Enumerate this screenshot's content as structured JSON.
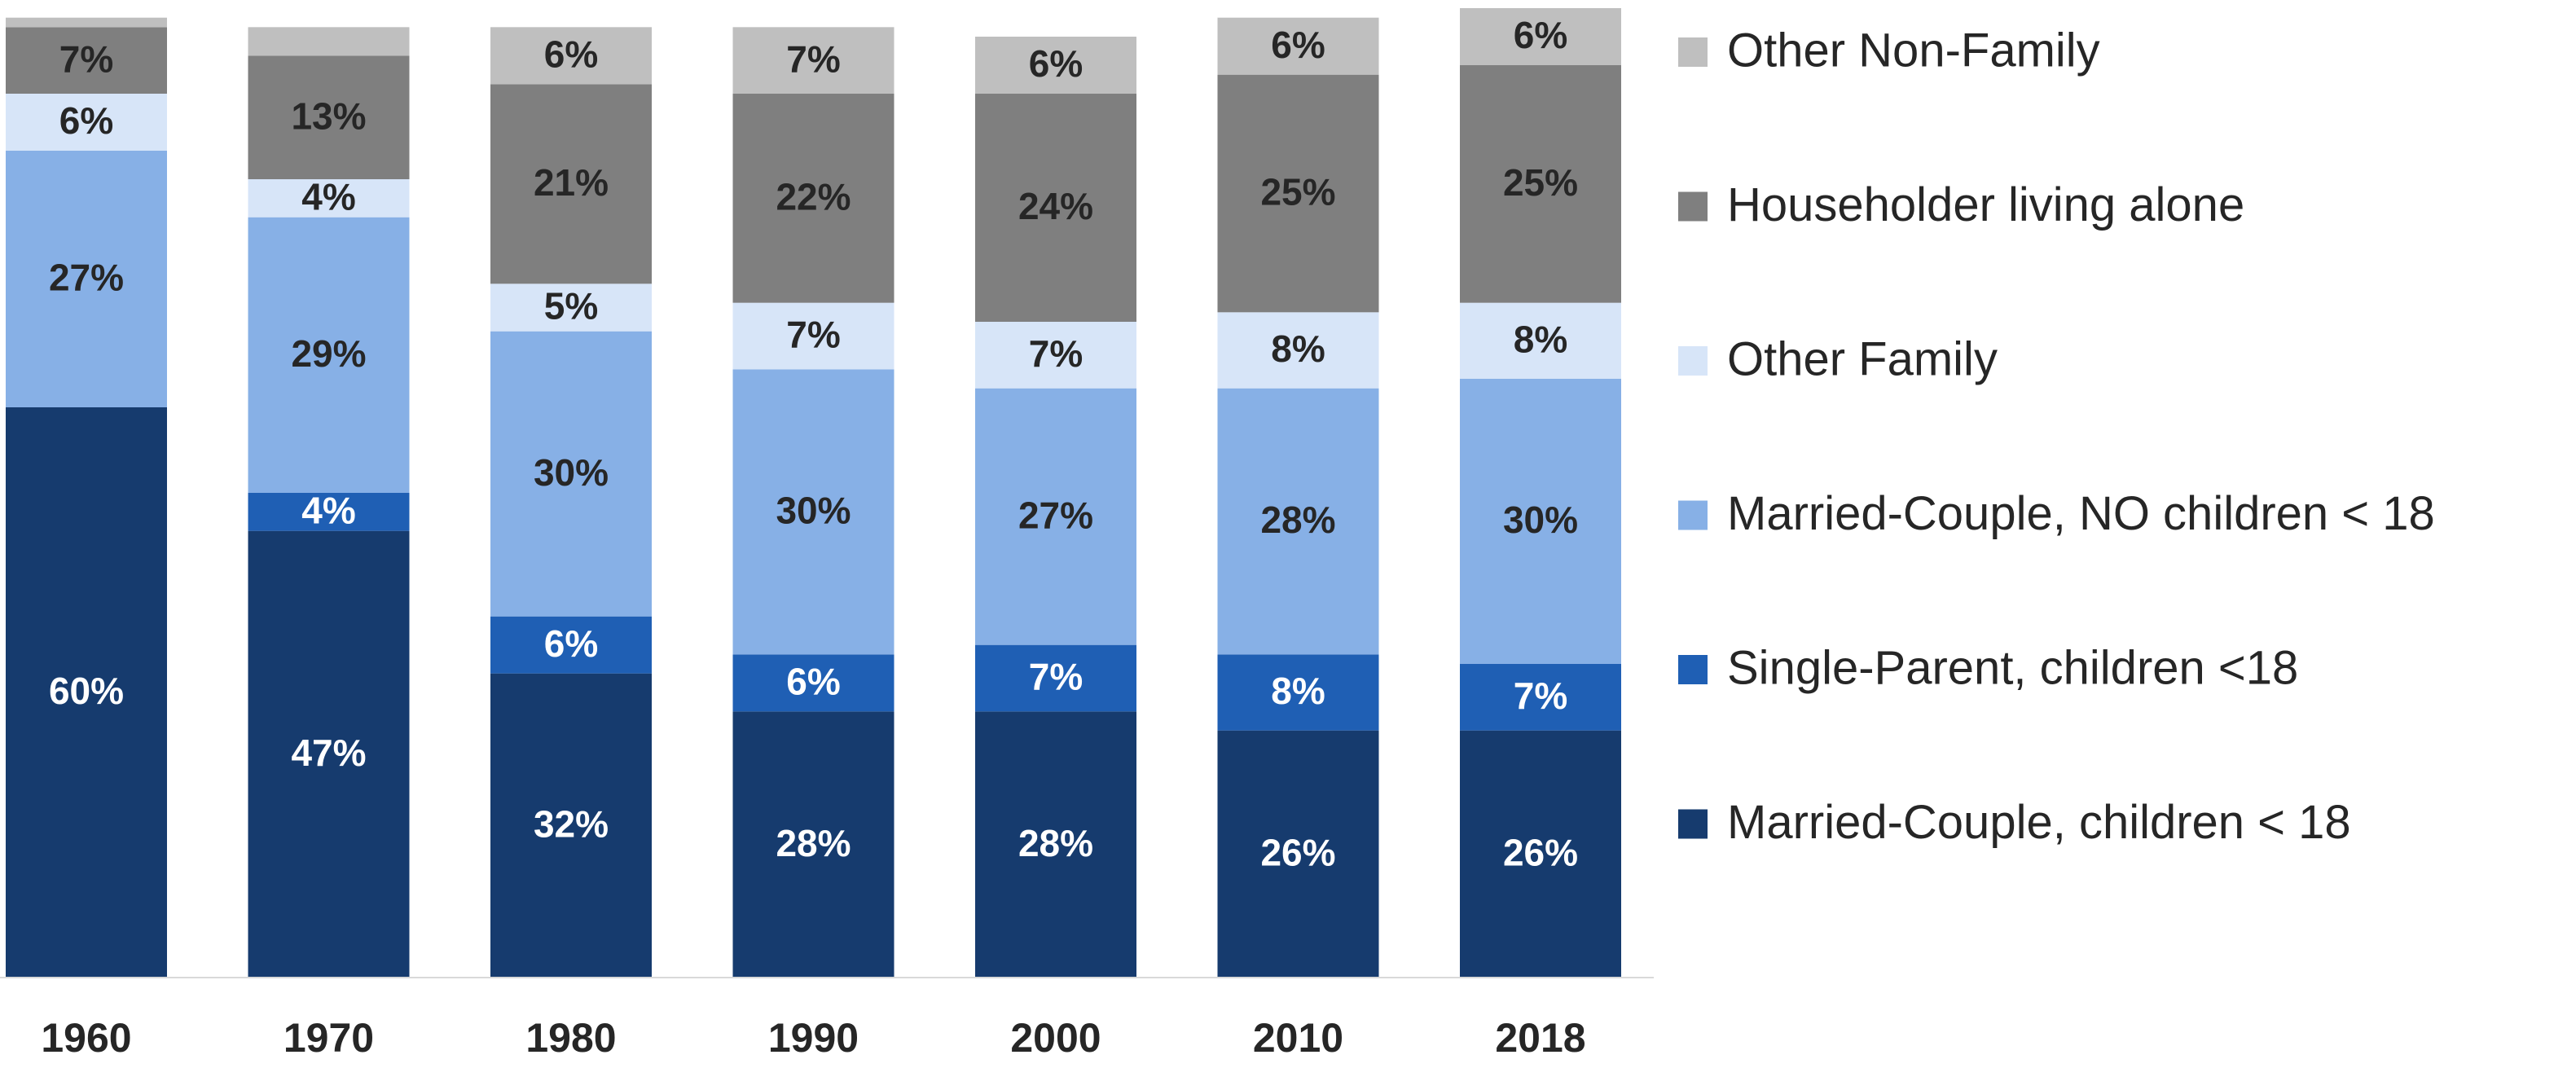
{
  "chart_data": {
    "type": "stacked_bar",
    "categories": [
      "1960",
      "1970",
      "1980",
      "1990",
      "2000",
      "2010",
      "2018"
    ],
    "ylim": [
      0,
      102
    ],
    "series": [
      {
        "name": "Married-Couple, children < 18",
        "color": "#163b6e",
        "values": [
          60,
          47,
          32,
          28,
          28,
          26,
          26
        ],
        "value_labels": [
          "60%",
          "47%",
          "32%",
          "28%",
          "28%",
          "26%",
          "26%"
        ]
      },
      {
        "name": "Single-Parent, children <18",
        "color": "#1f5fb4",
        "values": [
          0,
          4,
          6,
          6,
          7,
          8,
          7
        ],
        "value_labels": [
          null,
          "4%",
          "6%",
          "6%",
          "7%",
          "8%",
          "7%"
        ]
      },
      {
        "name": "Married-Couple, NO children < 18",
        "color": "#87b0e6",
        "values": [
          27,
          29,
          30,
          30,
          27,
          28,
          30
        ],
        "value_labels": [
          "27%",
          "29%",
          "30%",
          "30%",
          "27%",
          "28%",
          "30%"
        ]
      },
      {
        "name": "Other Family",
        "color": "#d7e5f8",
        "values": [
          6,
          4,
          5,
          7,
          7,
          8,
          8
        ],
        "value_labels": [
          "6%",
          "4%",
          "5%",
          "7%",
          "7%",
          "8%",
          "8%"
        ]
      },
      {
        "name": "Householder living alone",
        "color": "#7f7f7f",
        "values": [
          7,
          13,
          21,
          22,
          24,
          25,
          25
        ],
        "value_labels": [
          "7%",
          "13%",
          "21%",
          "22%",
          "24%",
          "25%",
          "25%"
        ]
      },
      {
        "name": "Other Non-Family",
        "color": "#bfbfbf",
        "values": [
          1,
          3,
          6,
          7,
          6,
          6,
          6
        ],
        "value_labels": [
          null,
          null,
          "6%",
          "7%",
          "6%",
          "6%",
          "6%"
        ]
      }
    ]
  }
}
